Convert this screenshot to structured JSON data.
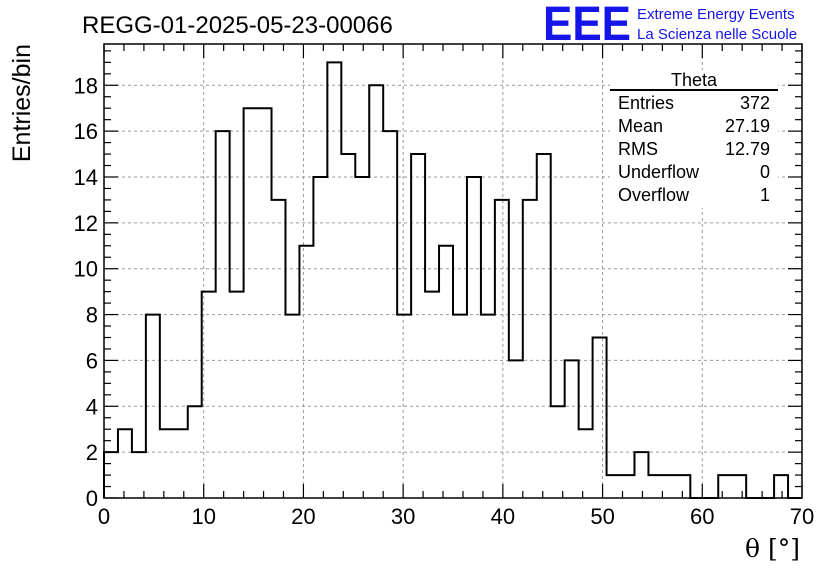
{
  "chart_data": {
    "type": "bar",
    "title": "REGG-01-2025-05-23-00066",
    "xlabel": "θ [°]",
    "ylabel": "Entries/bin",
    "xlim": [
      0,
      70
    ],
    "ylim": [
      0,
      19.8
    ],
    "bin_width": 1.4,
    "grid": true,
    "values": [
      2,
      3,
      2,
      8,
      3,
      3,
      4,
      9,
      16,
      9,
      17,
      17,
      13,
      8,
      11,
      14,
      19,
      15,
      14,
      18,
      16,
      8,
      15,
      9,
      11,
      8,
      14,
      8,
      13,
      6,
      13,
      15,
      4,
      6,
      3,
      7,
      1,
      1,
      2,
      1,
      1,
      1,
      0,
      0,
      1,
      1,
      0,
      0,
      1,
      0
    ],
    "x_ticks": [
      "0",
      "10",
      "20",
      "30",
      "40",
      "50",
      "60",
      "70"
    ],
    "y_ticks": [
      "0",
      "2",
      "4",
      "6",
      "8",
      "10",
      "12",
      "14",
      "16",
      "18"
    ],
    "stats_box": {
      "name": "Theta",
      "rows": [
        {
          "label": "Entries",
          "value": "372"
        },
        {
          "label": "Mean",
          "value": "27.19"
        },
        {
          "label": "RMS",
          "value": "12.79"
        },
        {
          "label": "Underflow",
          "value": "0"
        },
        {
          "label": "Overflow",
          "value": "1"
        }
      ]
    }
  },
  "logo": {
    "text": "EEE",
    "line1": "Extreme Energy Events",
    "line2": "La Scienza nelle Scuole",
    "color": "#1515e8"
  }
}
